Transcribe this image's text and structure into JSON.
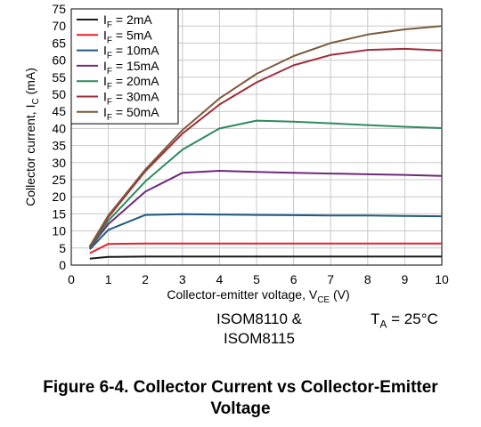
{
  "chart_data": {
    "type": "line",
    "xlim": [
      0,
      10
    ],
    "ylim": [
      0,
      75
    ],
    "xticks": [
      "0",
      "1",
      "2",
      "3",
      "4",
      "5",
      "6",
      "7",
      "8",
      "9",
      "10"
    ],
    "yticks": [
      "0",
      "5",
      "10",
      "15",
      "20",
      "25",
      "30",
      "35",
      "40",
      "45",
      "50",
      "55",
      "60",
      "65",
      "70",
      "75"
    ],
    "xlabel": {
      "main": "Collector-emitter voltage, V",
      "sub": "CE",
      "unit": " (V)"
    },
    "ylabel": {
      "main": "Collector current, I",
      "sub": "C",
      "unit": " (mA)"
    },
    "grid": true,
    "legend_position": "top-left",
    "x": [
      0.5,
      1,
      2,
      3,
      4,
      5,
      6,
      7,
      8,
      9,
      10
    ],
    "series": [
      {
        "name": "I",
        "name_sub": "F",
        "name_rest": " = 2mA",
        "color": "#1a1a1a",
        "values": [
          1.9,
          2.4,
          2.5,
          2.5,
          2.5,
          2.5,
          2.5,
          2.5,
          2.5,
          2.5,
          2.5
        ]
      },
      {
        "name": "I",
        "name_sub": "F",
        "name_rest": " = 5mA",
        "color": "#e8202a",
        "values": [
          3.5,
          6.2,
          6.3,
          6.3,
          6.3,
          6.3,
          6.3,
          6.3,
          6.3,
          6.3,
          6.3
        ]
      },
      {
        "name": "I",
        "name_sub": "F",
        "name_rest": " = 10mA",
        "color": "#1f5a80",
        "values": [
          4.6,
          10.3,
          14.7,
          14.9,
          14.8,
          14.7,
          14.6,
          14.5,
          14.5,
          14.4,
          14.3
        ]
      },
      {
        "name": "I",
        "name_sub": "F",
        "name_rest": " = 15mA",
        "color": "#6c2a78",
        "values": [
          5.0,
          12.0,
          21.5,
          27.0,
          27.6,
          27.3,
          27.0,
          26.8,
          26.6,
          26.4,
          26.1
        ]
      },
      {
        "name": "I",
        "name_sub": "F",
        "name_rest": " = 20mA",
        "color": "#2e8a5c",
        "values": [
          5.2,
          13.0,
          24.5,
          33.8,
          40.0,
          42.3,
          42.0,
          41.5,
          41.0,
          40.5,
          40.1
        ]
      },
      {
        "name": "I",
        "name_sub": "F",
        "name_rest": " = 30mA",
        "color": "#a02e3a",
        "values": [
          5.4,
          14.0,
          27.5,
          38.5,
          47.0,
          53.5,
          58.5,
          61.5,
          63.0,
          63.3,
          62.8
        ]
      },
      {
        "name": "I",
        "name_sub": "F",
        "name_rest": " = 50mA",
        "color": "#7a5a3c",
        "values": [
          5.5,
          14.5,
          28.0,
          39.5,
          48.8,
          56.0,
          61.2,
          65.0,
          67.5,
          69.0,
          70.0
        ]
      }
    ]
  },
  "device_line1": "ISOM8110 &",
  "device_line2": "ISOM8115",
  "ta_main": "T",
  "ta_sub": "A",
  "ta_rest": " = 25°C",
  "caption_line1": "Figure 6-4. Collector Current vs Collector-Emitter",
  "caption_line2": "Voltage"
}
